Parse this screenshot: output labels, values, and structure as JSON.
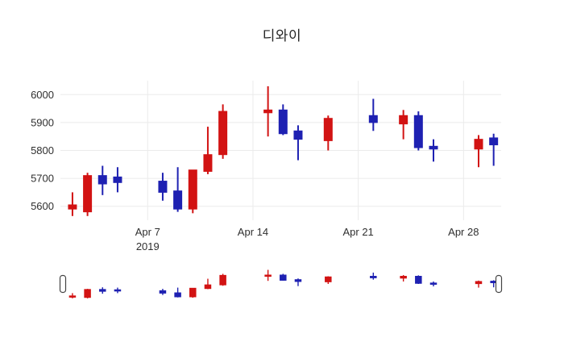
{
  "title": "디와이",
  "colors": {
    "increasing": "#d21313",
    "decreasing": "#1e21b2",
    "grid": "#ebebeb",
    "text": "#2f2f2f",
    "background": "#ffffff",
    "slider_handle_border": "#444444"
  },
  "chart_data": {
    "type": "candlestick",
    "title": "디와이",
    "xlabel": "",
    "ylabel": "",
    "legend": "none",
    "grid": "on",
    "y_ticks": [
      5600,
      5700,
      5800,
      5900,
      6000
    ],
    "y_range": [
      5550,
      6050
    ],
    "x_range_days": [
      1.2,
      30.5
    ],
    "x_ticks": [
      {
        "label": "Apr 7",
        "sub": "2019",
        "day": 7
      },
      {
        "label": "Apr 14",
        "sub": "",
        "day": 14
      },
      {
        "label": "Apr 21",
        "sub": "",
        "day": 21
      },
      {
        "label": "Apr 28",
        "sub": "",
        "day": 28
      }
    ],
    "candles": [
      {
        "date": "Apr 2",
        "day": 2,
        "open": 5590,
        "high": 5650,
        "low": 5565,
        "close": 5605
      },
      {
        "date": "Apr 3",
        "day": 3,
        "open": 5580,
        "high": 5720,
        "low": 5565,
        "close": 5710
      },
      {
        "date": "Apr 4",
        "day": 4,
        "open": 5710,
        "high": 5745,
        "low": 5640,
        "close": 5680
      },
      {
        "date": "Apr 5",
        "day": 5,
        "open": 5705,
        "high": 5740,
        "low": 5650,
        "close": 5685
      },
      {
        "date": "Apr 8",
        "day": 8,
        "open": 5690,
        "high": 5720,
        "low": 5620,
        "close": 5650
      },
      {
        "date": "Apr 9",
        "day": 9,
        "open": 5655,
        "high": 5740,
        "low": 5580,
        "close": 5590
      },
      {
        "date": "Apr 10",
        "day": 10,
        "open": 5590,
        "high": 5730,
        "low": 5575,
        "close": 5730
      },
      {
        "date": "Apr 11",
        "day": 11,
        "open": 5725,
        "high": 5885,
        "low": 5715,
        "close": 5785
      },
      {
        "date": "Apr 12",
        "day": 12,
        "open": 5785,
        "high": 5965,
        "low": 5770,
        "close": 5940
      },
      {
        "date": "Apr 15",
        "day": 15,
        "open": 5935,
        "high": 6030,
        "low": 5850,
        "close": 5945
      },
      {
        "date": "Apr 16",
        "day": 16,
        "open": 5945,
        "high": 5965,
        "low": 5855,
        "close": 5860
      },
      {
        "date": "Apr 17",
        "day": 17,
        "open": 5870,
        "high": 5890,
        "low": 5765,
        "close": 5840
      },
      {
        "date": "Apr 19",
        "day": 19,
        "open": 5835,
        "high": 5925,
        "low": 5800,
        "close": 5915
      },
      {
        "date": "Apr 22",
        "day": 22,
        "open": 5925,
        "high": 5985,
        "low": 5870,
        "close": 5900
      },
      {
        "date": "Apr 24",
        "day": 24,
        "open": 5895,
        "high": 5945,
        "low": 5840,
        "close": 5925
      },
      {
        "date": "Apr 25",
        "day": 25,
        "open": 5925,
        "high": 5940,
        "low": 5800,
        "close": 5810
      },
      {
        "date": "Apr 26",
        "day": 26,
        "open": 5815,
        "high": 5840,
        "low": 5760,
        "close": 5805
      },
      {
        "date": "Apr 29",
        "day": 29,
        "open": 5805,
        "high": 5855,
        "low": 5740,
        "close": 5840
      },
      {
        "date": "Apr 30",
        "day": 30,
        "open": 5845,
        "high": 5860,
        "low": 5745,
        "close": 5820
      }
    ],
    "rangeslider": {
      "visible": true,
      "selected_range": "full"
    }
  }
}
